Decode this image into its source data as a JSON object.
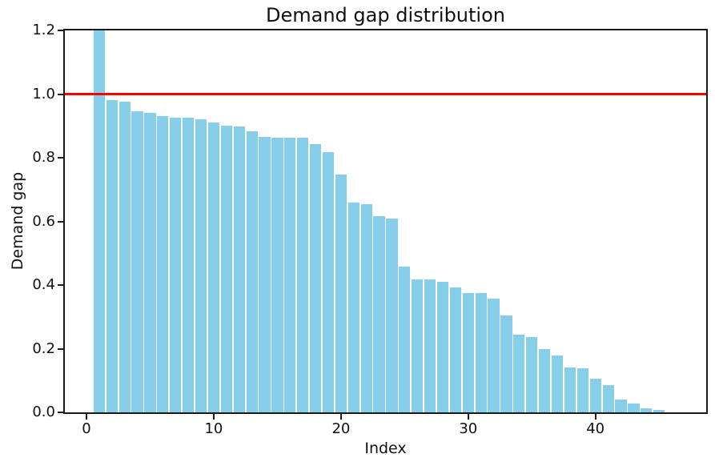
{
  "chart_data": {
    "type": "bar",
    "title": "Demand gap distribution",
    "xlabel": "Index",
    "ylabel": "Demand gap",
    "x": [
      1,
      2,
      3,
      4,
      5,
      6,
      7,
      8,
      9,
      10,
      11,
      12,
      13,
      14,
      15,
      16,
      17,
      18,
      19,
      20,
      21,
      22,
      23,
      24,
      25,
      26,
      27,
      28,
      29,
      30,
      31,
      32,
      33,
      34,
      35,
      36,
      37,
      38,
      39,
      40,
      41,
      42,
      43,
      44,
      45
    ],
    "values": [
      1.25,
      0.98,
      0.977,
      0.946,
      0.941,
      0.931,
      0.927,
      0.925,
      0.92,
      0.91,
      0.901,
      0.897,
      0.883,
      0.865,
      0.863,
      0.862,
      0.862,
      0.843,
      0.818,
      0.746,
      0.659,
      0.653,
      0.617,
      0.609,
      0.459,
      0.418,
      0.417,
      0.41,
      0.393,
      0.375,
      0.375,
      0.357,
      0.304,
      0.243,
      0.237,
      0.198,
      0.179,
      0.14,
      0.138,
      0.105,
      0.086,
      0.041,
      0.027,
      0.012,
      0.007
    ],
    "bar_color": "#87CEEB",
    "reference_line": {
      "y": 1.0,
      "color": "#ff0000",
      "orientation": "horizontal"
    },
    "xlim": [
      -1.7,
      48.7
    ],
    "ylim": [
      0,
      1.2
    ],
    "xticks": [
      "0",
      "10",
      "20",
      "30",
      "40"
    ],
    "yticks": [
      "0.0",
      "0.2",
      "0.4",
      "0.6",
      "0.8",
      "1.0",
      "1.2"
    ],
    "grid": false,
    "legend": null,
    "bar_width_ratio": 0.9,
    "note": "Bars sorted in descending order; first bar exceeds the y-axis maximum and is clipped at 1.2"
  }
}
